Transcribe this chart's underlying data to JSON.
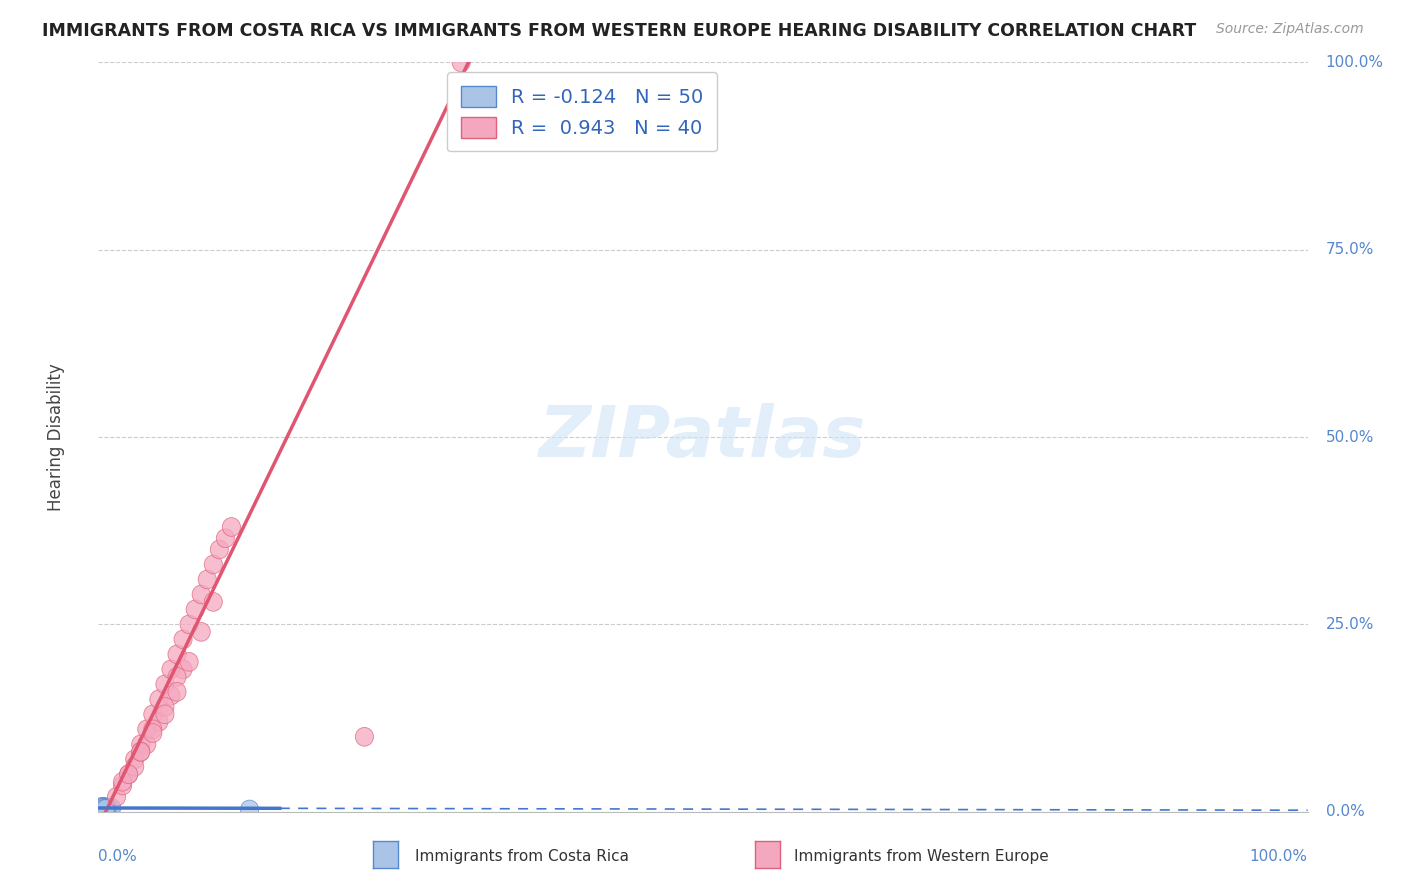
{
  "title": "IMMIGRANTS FROM COSTA RICA VS IMMIGRANTS FROM WESTERN EUROPE HEARING DISABILITY CORRELATION CHART",
  "source": "Source: ZipAtlas.com",
  "ylabel": "Hearing Disability",
  "y_tick_labels": [
    "0.0%",
    "25.0%",
    "50.0%",
    "75.0%",
    "100.0%"
  ],
  "y_tick_values": [
    0,
    25,
    50,
    75,
    100
  ],
  "legend1_label": "Immigrants from Costa Rica",
  "legend2_label": "Immigrants from Western Europe",
  "r1": -0.124,
  "n1": 50,
  "r2": 0.943,
  "n2": 40,
  "color1": "#aac4e8",
  "color1_line": "#5588cc",
  "color2": "#f4a8c0",
  "color2_line": "#e0607a",
  "line1_color": "#4477cc",
  "line2_color": "#e05570",
  "background_color": "#ffffff",
  "grid_color": "#cccccc",
  "watermark": "ZIPatlas",
  "title_fontsize": 12.5,
  "source_fontsize": 10,
  "costa_rica_x": [
    0.2,
    0.3,
    0.4,
    0.5,
    0.6,
    0.7,
    0.8,
    0.9,
    1.0,
    1.1,
    0.3,
    0.4,
    0.5,
    0.2,
    0.6,
    0.7,
    0.3,
    0.4,
    0.5,
    0.2,
    0.3,
    0.4,
    0.5,
    0.6,
    0.7,
    0.3,
    0.4,
    0.5,
    0.6,
    0.3,
    0.4,
    0.5,
    0.3,
    0.4,
    0.5,
    0.3,
    0.4,
    0.5,
    0.6,
    0.7,
    0.3,
    0.4,
    0.5,
    0.6,
    0.2,
    0.3,
    0.4,
    0.5,
    0.6,
    12.5
  ],
  "costa_rica_y": [
    0.3,
    0.4,
    0.5,
    0.6,
    0.3,
    0.4,
    0.5,
    0.3,
    0.4,
    0.5,
    0.6,
    0.3,
    0.4,
    0.5,
    0.3,
    0.4,
    0.5,
    0.6,
    0.3,
    0.4,
    0.5,
    0.3,
    0.4,
    0.5,
    0.6,
    0.3,
    0.4,
    0.5,
    0.3,
    0.6,
    0.3,
    0.4,
    0.5,
    0.6,
    0.3,
    0.4,
    0.5,
    0.3,
    0.4,
    0.3,
    0.6,
    0.5,
    0.4,
    0.3,
    0.6,
    0.5,
    0.4,
    0.3,
    0.4,
    0.3
  ],
  "western_europe_x": [
    1.5,
    2.0,
    2.5,
    3.0,
    3.5,
    4.0,
    4.5,
    5.0,
    5.5,
    6.0,
    6.5,
    7.0,
    7.5,
    8.0,
    8.5,
    9.0,
    9.5,
    10.0,
    10.5,
    11.0,
    2.0,
    3.0,
    4.0,
    5.0,
    6.0,
    7.0,
    3.5,
    4.5,
    5.5,
    6.5,
    2.5,
    3.5,
    4.5,
    5.5,
    6.5,
    7.5,
    8.5,
    9.5,
    22.0,
    30.0
  ],
  "western_europe_y": [
    2.0,
    3.5,
    5.0,
    7.0,
    9.0,
    11.0,
    13.0,
    15.0,
    17.0,
    19.0,
    21.0,
    23.0,
    25.0,
    27.0,
    29.0,
    31.0,
    33.0,
    35.0,
    36.5,
    38.0,
    4.0,
    6.0,
    9.0,
    12.0,
    15.5,
    19.0,
    8.0,
    11.0,
    14.0,
    18.0,
    5.0,
    8.0,
    10.5,
    13.0,
    16.0,
    20.0,
    24.0,
    28.0,
    10.0,
    100.0
  ]
}
